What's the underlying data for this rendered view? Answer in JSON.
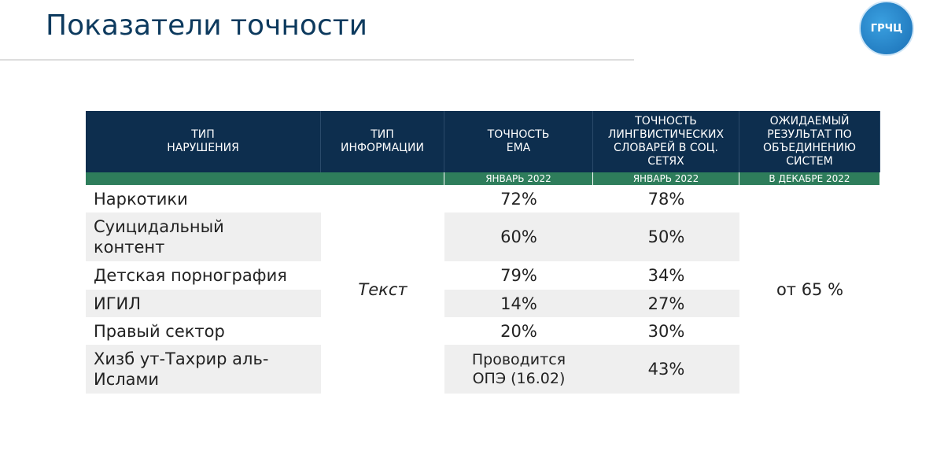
{
  "header": {
    "title": "Показатели точности",
    "logo": "ГРЧЦ"
  },
  "table": {
    "columns": [
      "ТИП\nНАРУШЕНИЯ",
      "ТИП\nИНФОРМАЦИИ",
      "ТОЧНОСТЬ\nЕМА",
      "ТОЧНОСТЬ\nЛИНГВИСТИЧЕСКИХ\nСЛОВАРЕЙ В СОЦ.\nСЕТЯХ",
      "ОЖИДАЕМЫЙ\nРЕЗУЛЬТАТ ПО\nОБЪЕДИНЕНИЮ\nСИСТЕМ"
    ],
    "subheaders": [
      "ЯНВАРЬ 2022",
      "ЯНВАРЬ 2022",
      "В ДЕКАБРЕ 2022"
    ],
    "info_type": "Текст",
    "expected": "от 65 %",
    "rows": [
      [
        "Наркотики",
        "72%",
        "78%"
      ],
      [
        "Суицидальный\nконтент",
        "60%",
        "50%"
      ],
      [
        "Детская порнография",
        "79%",
        "34%"
      ],
      [
        "ИГИЛ",
        "14%",
        "27%"
      ],
      [
        "Правый сектор",
        "20%",
        "30%"
      ],
      [
        "Хизб ут-Тахрир аль-\nИслами",
        "Проводится\nОПЭ (16.02)",
        "43%"
      ]
    ]
  }
}
